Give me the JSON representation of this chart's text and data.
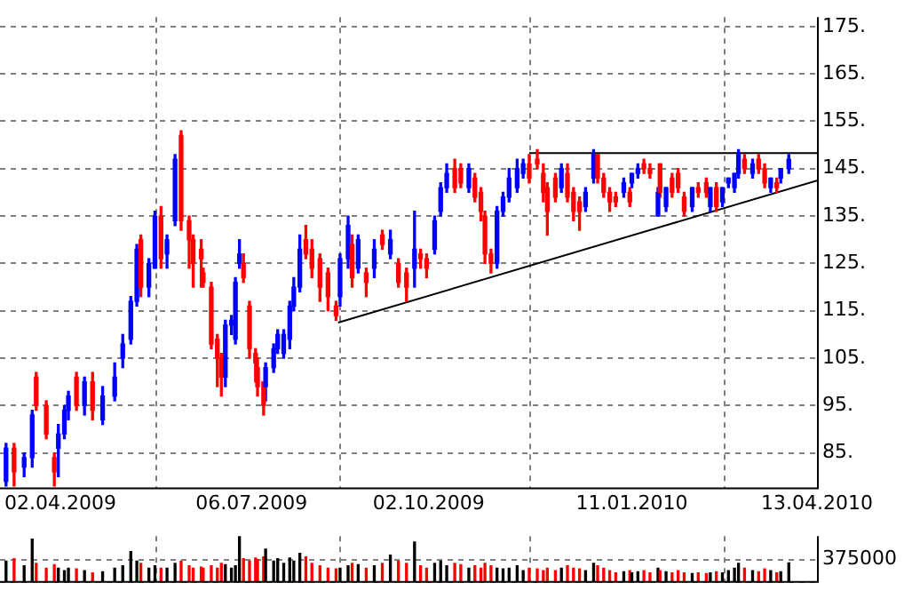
{
  "chart_data": [
    {
      "type": "candlestick",
      "x": [
        "2009-03-06",
        "2009-03-10",
        "2009-03-15",
        "2009-03-19",
        "2009-03-21",
        "2009-03-26",
        "2009-03-30",
        "2009-04-01",
        "2009-04-04",
        "2009-04-06",
        "2009-04-10",
        "2009-04-14",
        "2009-04-18",
        "2009-04-23",
        "2009-04-29",
        "2009-05-03",
        "2009-05-07",
        "2009-05-10",
        "2009-05-12",
        "2009-05-16",
        "2009-05-19",
        "2009-05-22",
        "2009-05-25",
        "2009-05-29",
        "2009-06-01",
        "2009-06-05",
        "2009-06-07",
        "2009-06-11",
        "2009-06-12",
        "2009-06-16",
        "2009-06-19",
        "2009-06-21",
        "2009-06-23",
        "2009-06-26",
        "2009-06-28",
        "2009-06-30",
        "2009-07-02",
        "2009-07-05",
        "2009-07-08",
        "2009-07-09",
        "2009-07-12",
        "2009-07-13",
        "2009-07-17",
        "2009-07-19",
        "2009-07-22",
        "2009-07-25",
        "2009-07-27",
        "2009-07-30",
        "2009-08-02",
        "2009-08-05",
        "2009-08-09",
        "2009-08-13",
        "2009-08-17",
        "2009-08-19",
        "2009-08-23",
        "2009-08-25",
        "2009-08-28",
        "2009-09-01",
        "2009-09-05",
        "2009-09-09",
        "2009-09-13",
        "2009-09-17",
        "2009-09-21",
        "2009-09-25",
        "2009-09-28",
        "2009-10-01",
        "2009-10-05",
        "2009-10-08",
        "2009-10-11",
        "2009-10-15",
        "2009-10-18",
        "2009-10-22",
        "2009-10-25",
        "2009-10-28",
        "2009-10-30",
        "2009-11-02",
        "2009-11-05",
        "2009-11-08",
        "2009-11-11",
        "2009-11-15",
        "2009-11-18",
        "2009-11-21",
        "2009-11-25",
        "2009-11-28",
        "2009-11-30",
        "2009-12-04",
        "2009-12-07",
        "2009-12-10",
        "2009-12-13",
        "2009-12-16",
        "2009-12-19",
        "2009-12-23",
        "2009-12-25",
        "2009-12-28",
        "2009-12-31",
        "2010-01-03",
        "2010-01-07",
        "2010-01-10",
        "2010-01-11",
        "2010-01-14",
        "2010-01-17",
        "2010-01-20",
        "2010-01-24",
        "2010-01-25",
        "2010-01-28",
        "2010-01-31",
        "2010-02-03",
        "2010-02-06",
        "2010-02-10",
        "2010-02-13",
        "2010-02-17",
        "2010-02-19",
        "2010-02-22",
        "2010-02-25",
        "2010-02-28",
        "2010-03-03",
        "2010-03-05",
        "2010-03-08",
        "2010-03-12",
        "2010-03-15",
        "2010-03-18",
        "2010-03-21",
        "2010-03-24",
        "2010-03-26",
        "2010-03-30"
      ],
      "ohlc": [
        [
          79,
          87,
          78,
          86
        ],
        [
          86,
          87,
          78,
          81
        ],
        [
          82,
          85,
          80,
          84
        ],
        [
          84,
          94,
          82,
          93
        ],
        [
          101,
          102,
          94,
          95
        ],
        [
          95,
          96,
          88,
          89
        ],
        [
          84,
          85,
          78,
          81
        ],
        [
          86,
          91,
          80,
          89
        ],
        [
          89,
          95,
          88,
          94
        ],
        [
          94,
          98,
          92,
          97
        ],
        [
          101,
          102,
          94,
          95
        ],
        [
          95,
          101,
          93,
          100
        ],
        [
          100,
          102,
          92,
          94
        ],
        [
          92,
          99,
          91,
          97
        ],
        [
          97,
          104,
          96,
          101
        ],
        [
          105,
          110,
          103,
          108
        ],
        [
          109,
          118,
          108,
          117
        ],
        [
          117,
          129,
          116,
          128
        ],
        [
          130,
          131,
          118,
          120
        ],
        [
          120,
          126,
          118,
          125
        ],
        [
          124,
          136,
          124,
          135
        ],
        [
          135,
          137,
          124,
          126
        ],
        [
          127,
          131,
          124,
          130
        ],
        [
          134,
          148,
          133,
          147
        ],
        [
          152,
          153,
          132,
          134
        ],
        [
          134,
          135,
          124,
          130
        ],
        [
          130,
          131,
          120,
          125
        ],
        [
          128,
          130,
          120,
          126
        ],
        [
          123,
          124,
          120,
          121
        ],
        [
          120,
          121,
          107,
          108
        ],
        [
          109,
          110,
          99,
          105
        ],
        [
          105,
          106,
          97,
          101
        ],
        [
          101,
          113,
          99,
          112
        ],
        [
          112,
          114,
          110,
          113
        ],
        [
          109,
          122,
          108,
          121
        ],
        [
          125,
          130,
          124,
          127
        ],
        [
          125,
          127,
          121,
          122
        ],
        [
          116,
          117,
          105,
          107
        ],
        [
          106,
          107,
          100,
          104
        ],
        [
          103,
          105,
          97,
          99
        ],
        [
          100,
          100,
          93,
          95
        ],
        [
          99,
          104,
          96,
          103
        ],
        [
          103,
          108,
          102,
          107
        ],
        [
          107,
          111,
          106,
          110
        ],
        [
          106,
          111,
          105,
          110
        ],
        [
          109,
          117,
          107,
          116
        ],
        [
          116,
          122,
          115,
          120
        ],
        [
          120,
          131,
          119,
          128
        ],
        [
          130,
          133,
          126,
          127
        ],
        [
          128,
          130,
          122,
          124
        ],
        [
          126,
          127,
          117,
          120
        ],
        [
          123,
          124,
          115,
          118
        ],
        [
          116,
          117,
          113,
          114
        ],
        [
          118,
          127,
          116,
          126
        ],
        [
          126,
          135,
          124,
          133
        ],
        [
          129,
          131,
          120,
          122
        ],
        [
          124,
          131,
          123,
          130
        ],
        [
          123,
          124,
          118,
          121
        ],
        [
          124,
          130,
          122,
          128
        ],
        [
          131,
          132,
          128,
          129
        ],
        [
          127,
          132,
          126,
          130
        ],
        [
          125,
          126,
          120,
          121
        ],
        [
          123,
          124,
          117,
          120
        ],
        [
          124,
          136,
          120,
          128
        ],
        [
          127,
          128,
          124,
          126
        ],
        [
          126,
          127,
          122,
          124
        ],
        [
          128,
          135,
          127,
          134
        ],
        [
          136,
          142,
          135,
          141
        ],
        [
          141,
          146,
          140,
          144
        ],
        [
          145,
          147,
          140,
          141
        ],
        [
          145,
          146,
          141,
          142
        ],
        [
          141,
          146,
          140,
          145
        ],
        [
          143,
          144,
          138,
          139
        ],
        [
          140,
          141,
          134,
          136
        ],
        [
          135,
          136,
          125,
          127
        ],
        [
          127,
          128,
          123,
          125
        ],
        [
          125,
          137,
          124,
          136
        ],
        [
          136,
          140,
          135,
          139
        ],
        [
          139,
          145,
          138,
          143
        ],
        [
          141,
          147,
          140,
          145
        ],
        [
          144,
          147,
          143,
          146
        ],
        [
          146,
          148,
          142,
          143
        ],
        [
          147,
          149,
          145,
          146
        ],
        [
          144,
          146,
          138,
          140
        ],
        [
          141,
          142,
          131,
          136
        ],
        [
          143,
          144,
          138,
          139
        ],
        [
          141,
          146,
          140,
          145
        ],
        [
          144,
          146,
          138,
          139
        ],
        [
          140,
          141,
          134,
          136
        ],
        [
          138,
          139,
          132,
          136
        ],
        [
          137,
          141,
          136,
          140
        ],
        [
          143,
          149,
          142,
          148
        ],
        [
          148,
          148,
          142,
          143
        ],
        [
          143,
          144,
          139,
          140
        ],
        [
          140,
          141,
          136,
          138
        ],
        [
          139,
          140,
          137,
          138
        ],
        [
          140,
          143,
          139,
          142
        ],
        [
          140,
          141,
          137,
          138
        ],
        [
          142,
          144,
          141,
          144
        ],
        [
          144,
          146,
          143,
          145
        ],
        [
          146,
          147,
          144,
          145
        ],
        [
          145,
          146,
          143,
          144
        ],
        [
          135,
          141,
          135,
          140
        ],
        [
          146,
          146,
          139,
          140
        ],
        [
          137,
          141,
          136,
          141
        ],
        [
          143,
          144,
          139,
          140
        ],
        [
          144,
          145,
          140,
          141
        ],
        [
          139,
          140,
          135,
          136
        ],
        [
          137,
          141,
          136,
          141
        ],
        [
          141,
          142,
          139,
          140
        ],
        [
          142,
          143,
          139,
          140
        ],
        [
          137,
          141,
          136,
          141
        ],
        [
          141,
          142,
          136,
          137
        ],
        [
          138,
          141,
          137,
          141
        ],
        [
          142,
          143,
          141,
          143
        ],
        [
          141,
          144,
          140,
          144
        ],
        [
          144,
          149,
          143,
          148
        ],
        [
          147,
          148,
          144,
          145
        ],
        [
          144,
          147,
          143,
          146
        ],
        [
          147,
          148,
          144,
          145
        ],
        [
          145,
          146,
          141,
          142
        ],
        [
          141,
          143,
          140,
          143
        ],
        [
          142,
          143,
          140,
          141
        ],
        [
          143,
          145,
          142,
          145
        ],
        [
          145,
          148,
          144,
          147
        ]
      ],
      "colors": [
        "#0000ff",
        "#ff0000",
        "#0000ff",
        "#0000ff",
        "#ff0000",
        "#ff0000",
        "#ff0000",
        "#0000ff",
        "#0000ff",
        "#0000ff",
        "#ff0000",
        "#0000ff",
        "#ff0000",
        "#0000ff",
        "#0000ff",
        "#0000ff",
        "#0000ff",
        "#0000ff",
        "#ff0000",
        "#0000ff",
        "#0000ff",
        "#ff0000",
        "#0000ff",
        "#0000ff",
        "#ff0000",
        "#ff0000",
        "#ff0000",
        "#ff0000",
        "#ff0000",
        "#ff0000",
        "#ff0000",
        "#ff0000",
        "#0000ff",
        "#0000ff",
        "#0000ff",
        "#0000ff",
        "#ff0000",
        "#ff0000",
        "#ff0000",
        "#ff0000",
        "#ff0000",
        "#0000ff",
        "#0000ff",
        "#0000ff",
        "#0000ff",
        "#0000ff",
        "#0000ff",
        "#0000ff",
        "#ff0000",
        "#ff0000",
        "#ff0000",
        "#ff0000",
        "#ff0000",
        "#0000ff",
        "#0000ff",
        "#ff0000",
        "#0000ff",
        "#ff0000",
        "#0000ff",
        "#ff0000",
        "#0000ff",
        "#ff0000",
        "#ff0000",
        "#0000ff",
        "#ff0000",
        "#ff0000",
        "#0000ff",
        "#0000ff",
        "#0000ff",
        "#ff0000",
        "#ff0000",
        "#0000ff",
        "#ff0000",
        "#ff0000",
        "#ff0000",
        "#ff0000",
        "#0000ff",
        "#0000ff",
        "#0000ff",
        "#0000ff",
        "#0000ff",
        "#ff0000",
        "#ff0000",
        "#ff0000",
        "#ff0000",
        "#ff0000",
        "#0000ff",
        "#ff0000",
        "#ff0000",
        "#ff0000",
        "#0000ff",
        "#0000ff",
        "#ff0000",
        "#ff0000",
        "#ff0000",
        "#ff0000",
        "#0000ff",
        "#ff0000",
        "#0000ff",
        "#0000ff",
        "#ff0000",
        "#ff0000",
        "#0000ff",
        "#ff0000",
        "#0000ff",
        "#ff0000",
        "#ff0000",
        "#ff0000",
        "#0000ff",
        "#ff0000",
        "#ff0000",
        "#0000ff",
        "#ff0000",
        "#0000ff",
        "#0000ff",
        "#0000ff",
        "#0000ff",
        "#ff0000",
        "#0000ff",
        "#ff0000",
        "#ff0000",
        "#0000ff",
        "#ff0000",
        "#0000ff",
        "#0000ff"
      ],
      "series": [
        {
          "type": "line",
          "x": [
            "2009-08-18",
            "2010-04-13"
          ],
          "values": [
            112.5,
            142.5
          ],
          "color": "#000000"
        },
        {
          "type": "line",
          "x": [
            "2009-11-21",
            "2010-04-13"
          ],
          "values": [
            148.3,
            148.3
          ],
          "color": "#000000"
        }
      ],
      "xlim": [
        "2009-03-03",
        "2010-04-13"
      ],
      "xticks": [
        {
          "value": "2009-04-02",
          "label": "02.04.2009"
        },
        {
          "value": "2009-07-06",
          "label": "06.07.2009"
        },
        {
          "value": "2009-10-02",
          "label": "02.10.2009"
        },
        {
          "value": "2010-01-11",
          "label": "11.01.2010"
        },
        {
          "value": "2010-04-13",
          "label": "13.04.2010"
        }
      ],
      "ylim": [
        77.5,
        177
      ],
      "yticks": [
        {
          "value": 85,
          "label": "85."
        },
        {
          "value": 95,
          "label": "95."
        },
        {
          "value": 105,
          "label": "105."
        },
        {
          "value": 115,
          "label": "115."
        },
        {
          "value": 125,
          "label": "125."
        },
        {
          "value": 135,
          "label": "135."
        },
        {
          "value": 145,
          "label": "145."
        },
        {
          "value": 155,
          "label": "155."
        },
        {
          "value": 165,
          "label": "165."
        },
        {
          "value": 175,
          "label": "175."
        }
      ],
      "grid": true
    },
    {
      "type": "bar",
      "x": [
        "2009-03-06",
        "2009-03-10",
        "2009-03-15",
        "2009-03-19",
        "2009-03-21",
        "2009-03-26",
        "2009-03-30",
        "2009-04-01",
        "2009-04-04",
        "2009-04-06",
        "2009-04-10",
        "2009-04-14",
        "2009-04-18",
        "2009-04-23",
        "2009-04-29",
        "2009-05-03",
        "2009-05-07",
        "2009-05-10",
        "2009-05-12",
        "2009-05-16",
        "2009-05-19",
        "2009-05-22",
        "2009-05-25",
        "2009-05-29",
        "2009-06-01",
        "2009-06-05",
        "2009-06-07",
        "2009-06-11",
        "2009-06-12",
        "2009-06-16",
        "2009-06-19",
        "2009-06-21",
        "2009-06-23",
        "2009-06-26",
        "2009-06-28",
        "2009-06-30",
        "2009-07-02",
        "2009-07-05",
        "2009-07-08",
        "2009-07-09",
        "2009-07-12",
        "2009-07-13",
        "2009-07-17",
        "2009-07-19",
        "2009-07-22",
        "2009-07-25",
        "2009-07-27",
        "2009-07-30",
        "2009-08-02",
        "2009-08-05",
        "2009-08-09",
        "2009-08-13",
        "2009-08-17",
        "2009-08-19",
        "2009-08-23",
        "2009-08-25",
        "2009-08-28",
        "2009-09-01",
        "2009-09-05",
        "2009-09-09",
        "2009-09-13",
        "2009-09-17",
        "2009-09-21",
        "2009-09-25",
        "2009-09-28",
        "2009-10-01",
        "2009-10-05",
        "2009-10-08",
        "2009-10-11",
        "2009-10-15",
        "2009-10-18",
        "2009-10-22",
        "2009-10-25",
        "2009-10-28",
        "2009-10-30",
        "2009-11-02",
        "2009-11-05",
        "2009-11-08",
        "2009-11-11",
        "2009-11-15",
        "2009-11-18",
        "2009-11-21",
        "2009-11-25",
        "2009-11-28",
        "2009-11-30",
        "2009-12-04",
        "2009-12-07",
        "2009-12-10",
        "2009-12-13",
        "2009-12-16",
        "2009-12-19",
        "2009-12-23",
        "2009-12-25",
        "2009-12-28",
        "2009-12-31",
        "2010-01-03",
        "2010-01-07",
        "2010-01-10",
        "2010-01-11",
        "2010-01-14",
        "2010-01-17",
        "2010-01-20",
        "2010-01-24",
        "2010-01-25",
        "2010-01-28",
        "2010-01-31",
        "2010-02-03",
        "2010-02-06",
        "2010-02-10",
        "2010-02-13",
        "2010-02-17",
        "2010-02-19",
        "2010-02-22",
        "2010-02-25",
        "2010-02-28",
        "2010-03-03",
        "2010-03-05",
        "2010-03-08",
        "2010-03-12",
        "2010-03-15",
        "2010-03-18",
        "2010-03-21",
        "2010-03-24",
        "2010-03-26",
        "2010-03-30"
      ],
      "values": [
        350000,
        390000,
        270000,
        720000,
        310000,
        230000,
        290000,
        230000,
        190000,
        230000,
        220000,
        190000,
        150000,
        170000,
        230000,
        270000,
        510000,
        350000,
        310000,
        230000,
        270000,
        230000,
        230000,
        310000,
        350000,
        270000,
        230000,
        250000,
        230000,
        270000,
        230000,
        310000,
        290000,
        230000,
        270000,
        770000,
        390000,
        350000,
        400000,
        370000,
        420000,
        550000,
        350000,
        390000,
        310000,
        400000,
        350000,
        480000,
        420000,
        310000,
        270000,
        230000,
        220000,
        230000,
        270000,
        310000,
        290000,
        230000,
        270000,
        310000,
        450000,
        350000,
        310000,
        670000,
        270000,
        230000,
        310000,
        350000,
        270000,
        310000,
        290000,
        230000,
        270000,
        230000,
        310000,
        270000,
        230000,
        220000,
        230000,
        270000,
        190000,
        230000,
        220000,
        190000,
        230000,
        190000,
        230000,
        270000,
        230000,
        220000,
        190000,
        310000,
        270000,
        230000,
        190000,
        150000,
        170000,
        190000,
        150000,
        170000,
        190000,
        150000,
        230000,
        190000,
        170000,
        150000,
        190000,
        150000,
        140000,
        150000,
        140000,
        150000,
        170000,
        150000,
        190000,
        230000,
        310000,
        230000,
        190000,
        170000,
        220000,
        190000,
        150000,
        170000,
        320000
      ],
      "colors": [
        "#000000",
        "#ff0000",
        "#000000",
        "#000000",
        "#ff0000",
        "#ff0000",
        "#ff0000",
        "#000000",
        "#000000",
        "#000000",
        "#ff0000",
        "#000000",
        "#ff0000",
        "#000000",
        "#000000",
        "#000000",
        "#000000",
        "#000000",
        "#ff0000",
        "#000000",
        "#000000",
        "#ff0000",
        "#000000",
        "#000000",
        "#ff0000",
        "#ff0000",
        "#ff0000",
        "#ff0000",
        "#ff0000",
        "#ff0000",
        "#ff0000",
        "#ff0000",
        "#000000",
        "#000000",
        "#000000",
        "#000000",
        "#ff0000",
        "#ff0000",
        "#ff0000",
        "#ff0000",
        "#ff0000",
        "#000000",
        "#000000",
        "#000000",
        "#000000",
        "#000000",
        "#000000",
        "#000000",
        "#ff0000",
        "#ff0000",
        "#ff0000",
        "#ff0000",
        "#ff0000",
        "#000000",
        "#000000",
        "#ff0000",
        "#000000",
        "#ff0000",
        "#000000",
        "#ff0000",
        "#000000",
        "#ff0000",
        "#ff0000",
        "#000000",
        "#ff0000",
        "#ff0000",
        "#000000",
        "#000000",
        "#000000",
        "#ff0000",
        "#ff0000",
        "#000000",
        "#ff0000",
        "#ff0000",
        "#ff0000",
        "#ff0000",
        "#000000",
        "#000000",
        "#000000",
        "#000000",
        "#000000",
        "#ff0000",
        "#ff0000",
        "#ff0000",
        "#ff0000",
        "#ff0000",
        "#000000",
        "#ff0000",
        "#ff0000",
        "#ff0000",
        "#000000",
        "#000000",
        "#ff0000",
        "#ff0000",
        "#ff0000",
        "#ff0000",
        "#000000",
        "#ff0000",
        "#000000",
        "#000000",
        "#ff0000",
        "#ff0000",
        "#000000",
        "#ff0000",
        "#000000",
        "#ff0000",
        "#ff0000",
        "#ff0000",
        "#000000",
        "#ff0000",
        "#ff0000",
        "#000000",
        "#ff0000",
        "#000000",
        "#000000",
        "#000000",
        "#000000",
        "#ff0000",
        "#000000",
        "#ff0000",
        "#ff0000",
        "#000000",
        "#ff0000",
        "#000000",
        "#000000"
      ],
      "xlim": [
        "2009-03-03",
        "2010-04-13"
      ],
      "xticks": [
        {
          "value": "2009-04-02",
          "label": null
        },
        {
          "value": "2009-07-06",
          "label": null
        },
        {
          "value": "2009-10-02",
          "label": null
        },
        {
          "value": "2010-01-11",
          "label": null
        },
        {
          "value": "2010-04-13",
          "label": null
        }
      ],
      "ylim": [
        0,
        770000
      ],
      "yticks": [
        {
          "value": 0,
          "label": null
        },
        375000
      ],
      "tick_labels": "y",
      "grid": true
    }
  ]
}
